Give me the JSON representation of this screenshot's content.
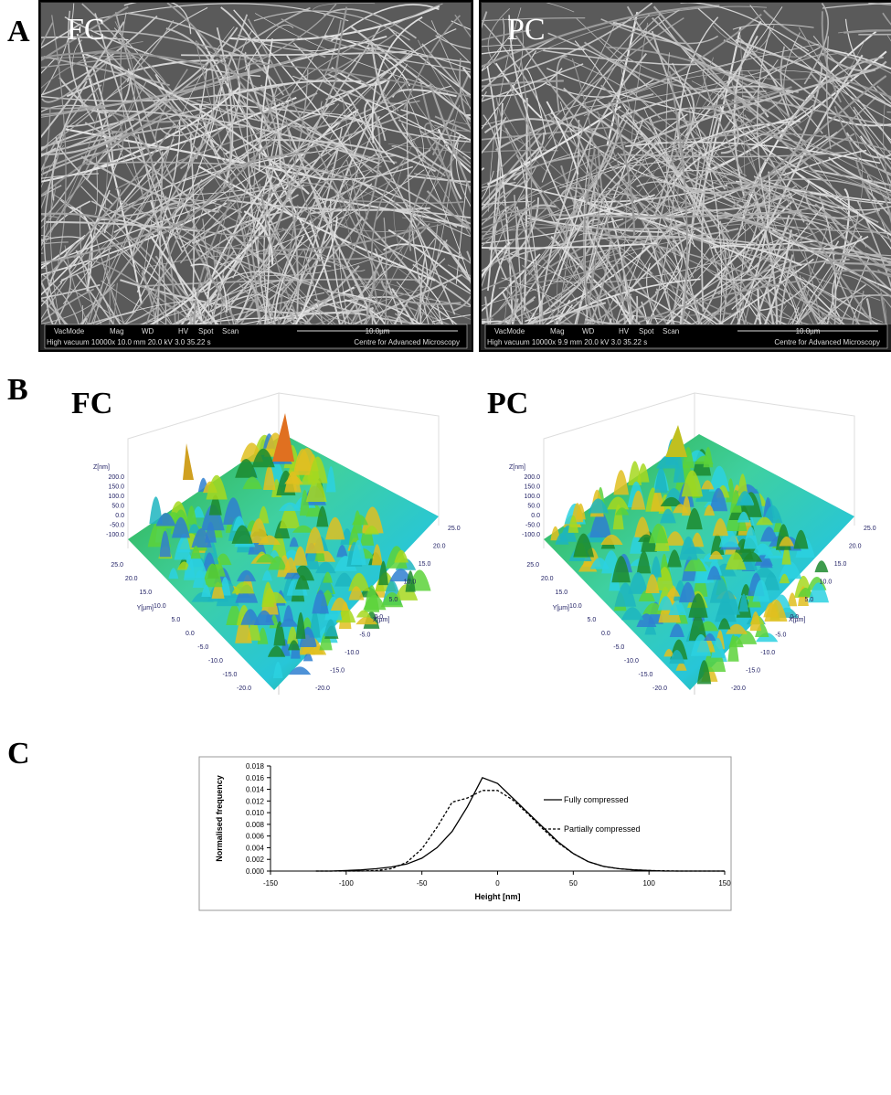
{
  "panels": {
    "A": {
      "label": "A",
      "images": [
        {
          "label": "FC",
          "info": {
            "headers": [
              "VacMode",
              "Mag",
              "WD",
              "HV",
              "Spot",
              "Scan"
            ],
            "scale": "10.0µm",
            "settings": "High vacuum 10000x 10.0 mm 20.0 kV 3.0 35.22 s",
            "facility": "Centre for Advanced Microscopy"
          }
        },
        {
          "label": "PC",
          "info": {
            "headers": [
              "VacMode",
              "Mag",
              "WD",
              "HV",
              "Spot",
              "Scan"
            ],
            "scale": "10.0µm",
            "settings": "High vacuum 10000x 9.9 mm 20.0 kV 3.0 35.22 s",
            "facility": "Centre for Advanced Microscopy"
          }
        }
      ]
    },
    "B": {
      "label": "B",
      "plots": [
        {
          "label": "FC",
          "z_axis": "Z[nm]",
          "z_ticks": [
            "200.0",
            "150.0",
            "100.0",
            "50.0",
            "0.0",
            "-50.0",
            "-100.0"
          ],
          "y_axis": "Y[µm]",
          "y_ticks": [
            "25.0",
            "20.0",
            "15.0",
            "10.0",
            "5.0",
            "0.0",
            "-5.0",
            "-10.0",
            "-15.0",
            "-20.0"
          ],
          "x_axis": "X[µm]",
          "x_ticks": [
            "25.0",
            "20.0",
            "15.0",
            "10.0",
            "5.0",
            "0.0",
            "-5.0",
            "-10.0",
            "-15.0",
            "-20.0"
          ]
        },
        {
          "label": "PC",
          "z_axis": "Z[nm]",
          "z_ticks": [
            "200.0",
            "150.0",
            "100.0",
            "50.0",
            "0.0",
            "-50.0",
            "-100.0"
          ],
          "y_axis": "Y[µm]",
          "y_ticks": [
            "25.0",
            "20.0",
            "15.0",
            "10.0",
            "5.0",
            "0.0",
            "-5.0",
            "-10.0",
            "-15.0",
            "-20.0"
          ],
          "x_axis": "X[µm]",
          "x_ticks": [
            "25.0",
            "20.0",
            "15.0",
            "10.0",
            "5.0",
            "0.0",
            "-5.0",
            "-10.0",
            "-15.0",
            "-20.0"
          ]
        }
      ]
    },
    "C": {
      "label": "C"
    }
  },
  "chart_data": {
    "type": "line",
    "xlabel": "Height [nm]",
    "ylabel": "Normalised frequency",
    "x": [
      -120,
      -110,
      -100,
      -90,
      -80,
      -70,
      -60,
      -50,
      -40,
      -30,
      -20,
      -10,
      0,
      10,
      20,
      30,
      40,
      50,
      60,
      70,
      80,
      90,
      100,
      110,
      120,
      130,
      140,
      150
    ],
    "series": [
      {
        "name": "Fully compressed",
        "color": "#000000",
        "dash": "solid",
        "values": [
          0,
          0,
          0.0001,
          0.0002,
          0.0004,
          0.0007,
          0.0012,
          0.0022,
          0.004,
          0.0068,
          0.011,
          0.016,
          0.015,
          0.0125,
          0.01,
          0.0075,
          0.005,
          0.003,
          0.0016,
          0.0008,
          0.0004,
          0.0002,
          0.0001,
          0,
          0,
          0,
          0,
          0
        ]
      },
      {
        "name": "Partially compressed",
        "color": "#000000",
        "dash": "dashed",
        "values": [
          0,
          0,
          0,
          0,
          0.0001,
          0.0004,
          0.0015,
          0.0038,
          0.0075,
          0.0118,
          0.0125,
          0.0138,
          0.0138,
          0.0122,
          0.0098,
          0.0072,
          0.0048,
          0.003,
          0.0016,
          0.0008,
          0.0004,
          0.0002,
          0.0001,
          5e-05,
          0,
          0,
          0,
          0
        ]
      }
    ],
    "xlim": [
      -150,
      150
    ],
    "xticks": [
      -150,
      -100,
      -50,
      0,
      50,
      100,
      150
    ],
    "ylim": [
      0,
      0.018
    ],
    "yticks": [
      {
        "value": 0,
        "label": "0.000"
      },
      {
        "value": 0.002,
        "label": "0.002"
      },
      {
        "value": 0.004,
        "label": "0.004"
      },
      {
        "value": 0.006,
        "label": "0.006"
      },
      {
        "value": 0.008,
        "label": "0.008"
      },
      {
        "value": 0.01,
        "label": "0.010"
      },
      {
        "value": 0.012,
        "label": "0.012"
      },
      {
        "value": 0.014,
        "label": "0.014"
      },
      {
        "value": 0.016,
        "label": "0.016"
      },
      {
        "value": 0.018,
        "label": "0.018"
      }
    ],
    "legend": "upper right"
  }
}
